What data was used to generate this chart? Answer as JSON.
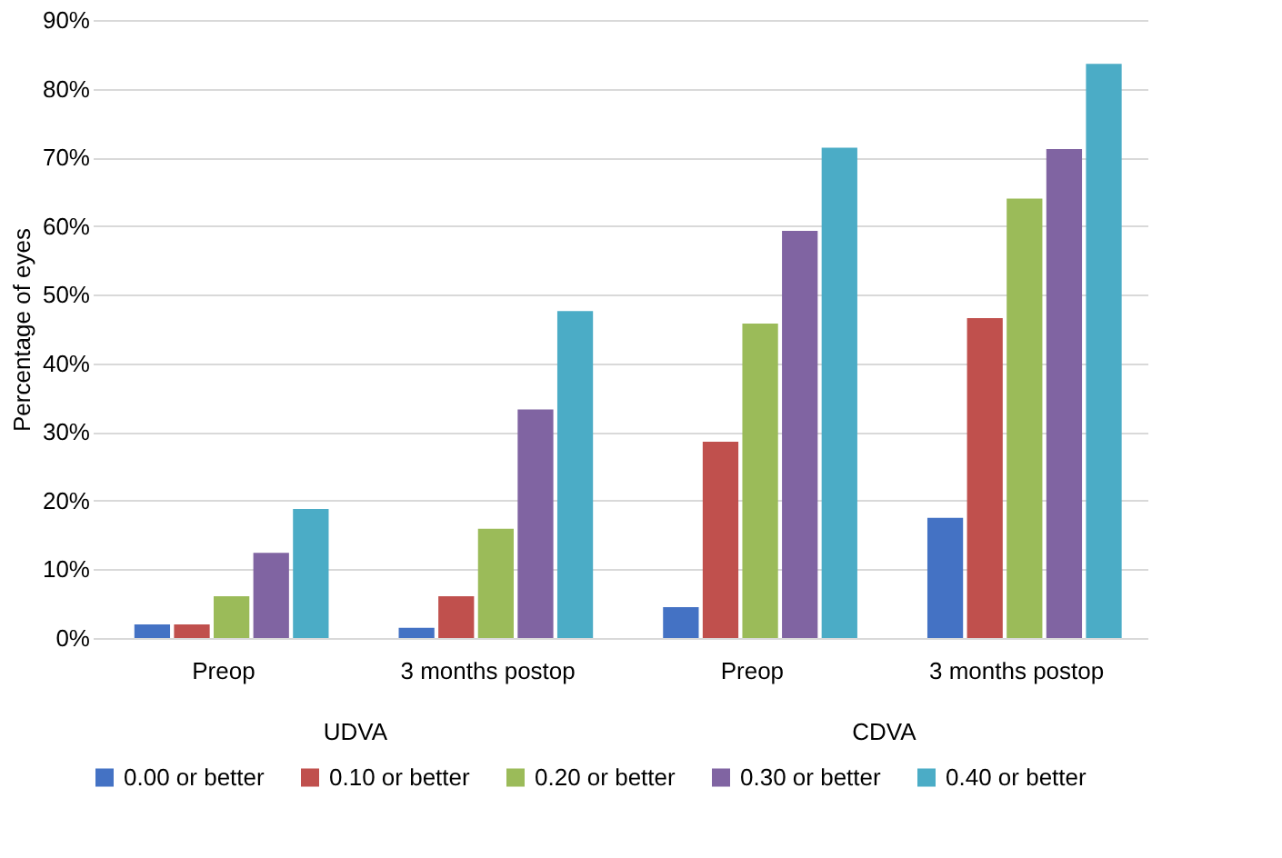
{
  "chart_data": {
    "type": "bar",
    "ylabel": "Percentage of eyes",
    "categories": [
      "Preop",
      "3 months postop",
      "Preop",
      "3 months postop"
    ],
    "annotations": [
      "UDVA",
      "CDVA"
    ],
    "series": [
      {
        "name": "0.00 or better",
        "color": "#4472c4",
        "values": [
          2.0,
          1.5,
          4.5,
          17.5
        ]
      },
      {
        "name": "0.10 or better",
        "color": "#c0504d",
        "values": [
          2.0,
          6.1,
          28.6,
          46.6
        ]
      },
      {
        "name": "0.20 or better",
        "color": "#9bbb59",
        "values": [
          6.1,
          15.9,
          45.8,
          64.0
        ]
      },
      {
        "name": "0.30 or better",
        "color": "#8064a2",
        "values": [
          12.4,
          33.3,
          59.3,
          71.2
        ]
      },
      {
        "name": "0.40 or better",
        "color": "#4bacc6",
        "values": [
          18.8,
          47.6,
          71.4,
          83.6
        ]
      }
    ],
    "ylim": [
      0,
      90
    ],
    "yticks": [
      {
        "value": 0,
        "label": "0%"
      },
      {
        "value": 10,
        "label": "10%"
      },
      {
        "value": 20,
        "label": "20%"
      },
      {
        "value": 30,
        "label": "30%"
      },
      {
        "value": 40,
        "label": "40%"
      },
      {
        "value": 50,
        "label": "50%"
      },
      {
        "value": 60,
        "label": "60%"
      },
      {
        "value": 70,
        "label": "70%"
      },
      {
        "value": 80,
        "label": "80%"
      },
      {
        "value": 90,
        "label": "90%"
      }
    ],
    "grid": "y",
    "legend": "bottom"
  }
}
